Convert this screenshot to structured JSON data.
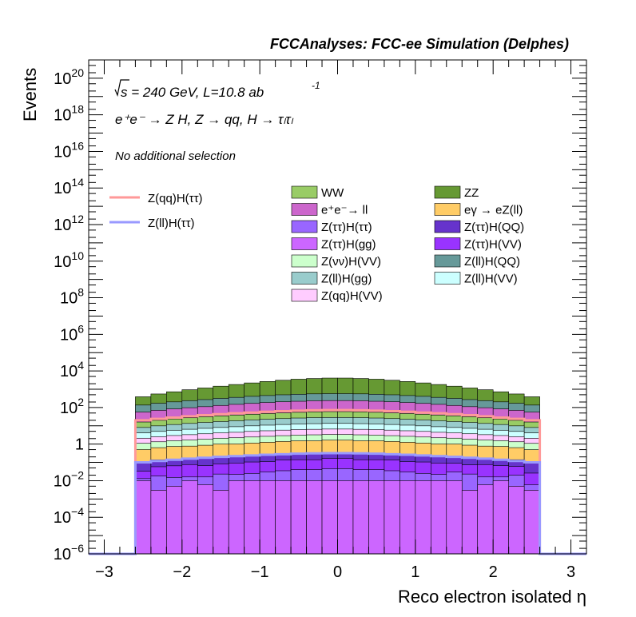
{
  "chart_data": {
    "type": "area",
    "title": "FCCAnalyses: FCC-ee Simulation (Delphes)",
    "xlabel": "Reco electron isolated η",
    "ylabel": "Events",
    "xlim": [
      -3.2,
      3.2
    ],
    "ylim": [
      1e-06,
      1e+21
    ],
    "log_y": true,
    "x_ticks": [
      "−3",
      "−2",
      "−1",
      "0",
      "1",
      "2",
      "3"
    ],
    "y_ticks": [
      "10^-6",
      "10^-4",
      "10^-2",
      "1",
      "10^2",
      "10^4",
      "10^6",
      "10^8",
      "10^10",
      "10^12",
      "10^14",
      "10^16",
      "10^18",
      "10^20"
    ],
    "annotations": {
      "energy_prefix": "s = 240 GeV, L=10.8 ab",
      "energy_exp": "-1",
      "process_line": "e⁺e⁻ → Z H, Z → qq, H → τₗτₗ",
      "selection": "No additional selection"
    },
    "bin_edges": [
      -2.6,
      -2.4,
      -2.2,
      -2.0,
      -1.8,
      -1.6,
      -1.4,
      -1.2,
      -1.0,
      -0.8,
      -0.6,
      -0.4,
      -0.2,
      0.0,
      0.2,
      0.4,
      0.6,
      0.8,
      1.0,
      1.2,
      1.4,
      1.6,
      1.8,
      2.0,
      2.2,
      2.4,
      2.6
    ],
    "stack_series": [
      {
        "name": "Z(ττ)H(gg)",
        "color": "#cc66ff",
        "values": [
          0.01,
          0.003,
          0.005,
          0.01,
          0.006,
          0.003,
          0.01,
          0.01,
          0.01,
          0.01,
          0.01,
          0.01,
          0.01,
          0.01,
          0.01,
          0.01,
          0.01,
          0.01,
          0.01,
          0.01,
          0.01,
          0.003,
          0.006,
          0.01,
          0.005,
          0.003
        ]
      },
      {
        "name": "Z(ττ)H(ττ)",
        "color": "#9966ff",
        "values": [
          0.003,
          0.015,
          0.01,
          0.006,
          0.01,
          0.02,
          0.012,
          0.015,
          0.02,
          0.025,
          0.03,
          0.03,
          0.035,
          0.035,
          0.03,
          0.03,
          0.025,
          0.02,
          0.015,
          0.012,
          0.02,
          0.02,
          0.01,
          0.006,
          0.015,
          0.003
        ]
      },
      {
        "name": "Z(ττ)H(VV)",
        "color": "#9933ff",
        "values": [
          0.02,
          0.04,
          0.05,
          0.06,
          0.05,
          0.06,
          0.07,
          0.08,
          0.08,
          0.1,
          0.1,
          0.1,
          0.12,
          0.12,
          0.1,
          0.1,
          0.1,
          0.08,
          0.08,
          0.07,
          0.06,
          0.05,
          0.06,
          0.05,
          0.04,
          0.02
        ]
      },
      {
        "name": "Z(ττ)H(QQ)",
        "color": "#6633cc",
        "values": [
          0.07,
          0.08,
          0.08,
          0.1,
          0.1,
          0.12,
          0.13,
          0.14,
          0.15,
          0.16,
          0.17,
          0.18,
          0.18,
          0.18,
          0.18,
          0.17,
          0.16,
          0.15,
          0.14,
          0.13,
          0.12,
          0.1,
          0.1,
          0.08,
          0.08,
          0.07
        ]
      },
      {
        "name": "eγ → eZ(ll)",
        "color": "#ffcc66",
        "values": [
          0.4,
          0.5,
          0.6,
          0.6,
          0.7,
          0.8,
          0.8,
          0.9,
          1.0,
          1.1,
          1.2,
          1.2,
          1.3,
          1.3,
          1.2,
          1.2,
          1.1,
          1.0,
          0.9,
          0.8,
          0.8,
          0.7,
          0.6,
          0.6,
          0.5,
          0.4
        ]
      },
      {
        "name": "Z(νν)H(VV)",
        "color": "#ccffcc",
        "values": [
          0.6,
          0.7,
          0.8,
          0.9,
          1.0,
          1.1,
          1.2,
          1.3,
          1.4,
          1.5,
          1.6,
          1.7,
          1.7,
          1.7,
          1.7,
          1.6,
          1.5,
          1.4,
          1.3,
          1.2,
          1.1,
          1.0,
          0.9,
          0.8,
          0.7,
          0.6
        ]
      },
      {
        "name": "Z(qq)H(VV)",
        "color": "#ffccff",
        "values": [
          1.0,
          1.2,
          1.4,
          1.6,
          1.8,
          2.0,
          2.2,
          2.5,
          2.7,
          2.9,
          3.1,
          3.2,
          3.3,
          3.3,
          3.2,
          3.1,
          2.9,
          2.7,
          2.5,
          2.2,
          2.0,
          1.8,
          1.6,
          1.4,
          1.2,
          1.0
        ]
      },
      {
        "name": "Z(ll)H(VV)",
        "color": "#ccffff",
        "values": [
          2,
          2.4,
          2.8,
          3.2,
          3.6,
          4,
          4.5,
          5,
          5.5,
          6,
          6.4,
          6.7,
          6.9,
          6.9,
          6.7,
          6.4,
          6,
          5.5,
          5,
          4.5,
          4,
          3.6,
          3.2,
          2.8,
          2.4,
          2
        ]
      },
      {
        "name": "Z(ll)H(gg)",
        "color": "#99cccc",
        "values": [
          4,
          5,
          6,
          7,
          8,
          9,
          10,
          11,
          12,
          13,
          14,
          15,
          15,
          15,
          15,
          14,
          13,
          12,
          11,
          10,
          9,
          8,
          7,
          6,
          5,
          4
        ]
      },
      {
        "name": "WW",
        "color": "#99cc66",
        "values": [
          8,
          10,
          12,
          14,
          16,
          18,
          20,
          22,
          24,
          26,
          28,
          30,
          31,
          31,
          30,
          28,
          26,
          24,
          22,
          20,
          18,
          16,
          14,
          12,
          10,
          8
        ]
      },
      {
        "name": "e⁺e⁻→ ll",
        "color": "#cc66cc",
        "values": [
          40,
          50,
          60,
          70,
          80,
          95,
          110,
          125,
          140,
          155,
          165,
          175,
          180,
          180,
          175,
          165,
          155,
          140,
          125,
          110,
          95,
          80,
          70,
          60,
          50,
          40
        ]
      },
      {
        "name": "Z(ll)H(QQ)",
        "color": "#669999",
        "values": [
          80,
          100,
          120,
          140,
          160,
          185,
          210,
          240,
          265,
          290,
          310,
          325,
          335,
          335,
          325,
          310,
          290,
          265,
          240,
          210,
          185,
          160,
          140,
          120,
          100,
          80
        ]
      },
      {
        "name": "ZZ",
        "color": "#669933",
        "values": [
          250,
          380,
          520,
          700,
          900,
          1150,
          1450,
          1800,
          2200,
          2600,
          3000,
          3300,
          3500,
          3500,
          3300,
          3000,
          2600,
          2200,
          1800,
          1450,
          1150,
          900,
          700,
          520,
          380,
          250
        ]
      }
    ],
    "line_series": [
      {
        "name": "Z(qq)H(ττ)",
        "color": "#ff9999",
        "values": [
          20,
          24,
          28,
          33,
          38,
          43,
          48,
          53,
          58,
          63,
          67,
          70,
          72,
          72,
          70,
          67,
          63,
          58,
          53,
          48,
          43,
          38,
          33,
          28,
          24,
          20
        ]
      },
      {
        "name": "Z(ll)H(ττ)",
        "color": "#9999ff",
        "values": [
          0.1,
          0.12,
          0.14,
          0.16,
          0.18,
          0.2,
          0.22,
          0.24,
          0.26,
          0.28,
          0.3,
          0.31,
          0.32,
          0.32,
          0.31,
          0.3,
          0.28,
          0.26,
          0.24,
          0.22,
          0.2,
          0.18,
          0.16,
          0.14,
          0.12,
          0.1
        ]
      }
    ],
    "legend_left": [
      "Z(qq)H(ττ)",
      "Z(ll)H(ττ)"
    ],
    "legend_main": [
      "WW",
      "ZZ",
      "e⁺e⁻→ ll",
      "eγ → eZ(ll)",
      "Z(ττ)H(ττ)",
      "Z(ττ)H(QQ)",
      "Z(ττ)H(gg)",
      "Z(ττ)H(VV)",
      "Z(νν)H(VV)",
      "Z(ll)H(QQ)",
      "Z(ll)H(gg)",
      "Z(ll)H(VV)",
      "Z(qq)H(VV)"
    ]
  }
}
